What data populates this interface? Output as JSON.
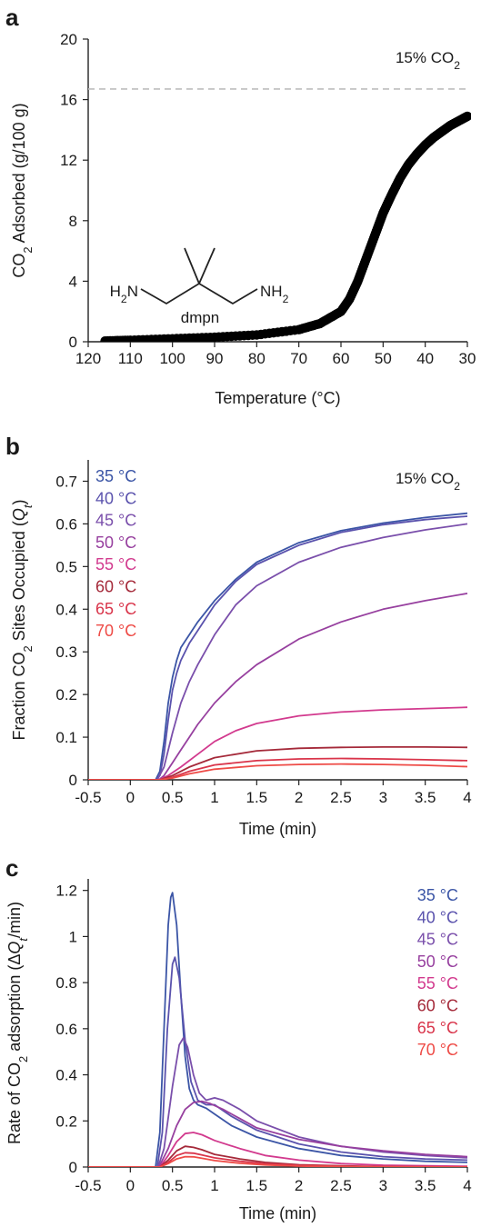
{
  "series_names": [
    "35 °C",
    "40 °C",
    "45 °C",
    "50 °C",
    "55 °C",
    "60 °C",
    "65 °C",
    "70 °C"
  ],
  "series_colors": [
    "#3b55a6",
    "#5a52ad",
    "#7a4fab",
    "#97409f",
    "#d23a8e",
    "#a52a3a",
    "#d9344a",
    "#ee4b46"
  ],
  "chart_data": [
    {
      "panel": "a",
      "type": "scatter",
      "title": "",
      "xlabel": "Temperature (°C)",
      "ylabel": "CO2 Adsorbed (g/100 g)",
      "xlim": [
        120,
        30
      ],
      "ylim": [
        0,
        20
      ],
      "x_ticks": [
        "120",
        "110",
        "100",
        "90",
        "80",
        "70",
        "60",
        "50",
        "40",
        "30"
      ],
      "y_ticks": [
        "0",
        "4",
        "8",
        "12",
        "16",
        "20"
      ],
      "annotation": "15% CO2",
      "molecule_label": "dmpn",
      "molecule_groups": [
        "H2N",
        "NH2"
      ],
      "reference_line": {
        "y": 16.7,
        "style": "dashed",
        "color": "#bdbdbd"
      },
      "series": [
        {
          "color": "#000000",
          "x": [
            116,
            110,
            100,
            90,
            80,
            70,
            65,
            60,
            58,
            56,
            54,
            52,
            50,
            48,
            46,
            44,
            42,
            40,
            38,
            36,
            34,
            32,
            30
          ],
          "y": [
            0.05,
            0.1,
            0.2,
            0.3,
            0.45,
            0.8,
            1.2,
            2.0,
            2.8,
            4.0,
            5.5,
            7.0,
            8.5,
            9.7,
            10.8,
            11.7,
            12.4,
            13.0,
            13.5,
            13.9,
            14.3,
            14.6,
            14.9
          ]
        }
      ]
    },
    {
      "panel": "b",
      "type": "line",
      "title": "",
      "xlabel": "Time (min)",
      "ylabel": "Fraction CO2 Sites Occupied (Qt)",
      "xlim": [
        -0.5,
        4
      ],
      "ylim": [
        0,
        0.75
      ],
      "x_ticks": [
        "-0.5",
        "0",
        "0.5",
        "1",
        "1.5",
        "2",
        "2.5",
        "3",
        "3.5",
        "4"
      ],
      "y_ticks": [
        "0",
        "0.1",
        "0.2",
        "0.3",
        "0.4",
        "0.5",
        "0.6",
        "0.7"
      ],
      "annotation": "15% CO2",
      "legend": "top-left",
      "series": [
        {
          "name": "35 °C",
          "x": [
            -0.5,
            0.3,
            0.35,
            0.4,
            0.45,
            0.5,
            0.55,
            0.6,
            0.7,
            0.8,
            1.0,
            1.25,
            1.5,
            2.0,
            2.5,
            3.0,
            3.5,
            4.0
          ],
          "y": [
            0,
            0,
            0.02,
            0.09,
            0.18,
            0.24,
            0.28,
            0.31,
            0.34,
            0.37,
            0.42,
            0.47,
            0.51,
            0.556,
            0.584,
            0.602,
            0.615,
            0.625
          ]
        },
        {
          "name": "40 °C",
          "x": [
            -0.5,
            0.3,
            0.35,
            0.4,
            0.45,
            0.5,
            0.55,
            0.6,
            0.7,
            0.8,
            1.0,
            1.25,
            1.5,
            2.0,
            2.5,
            3.0,
            3.5,
            4.0
          ],
          "y": [
            0,
            0,
            0.01,
            0.06,
            0.14,
            0.21,
            0.25,
            0.28,
            0.32,
            0.35,
            0.41,
            0.465,
            0.505,
            0.55,
            0.58,
            0.598,
            0.61,
            0.618
          ]
        },
        {
          "name": "45 °C",
          "x": [
            -0.5,
            0.32,
            0.4,
            0.5,
            0.6,
            0.7,
            0.8,
            1.0,
            1.25,
            1.5,
            2.0,
            2.5,
            3.0,
            3.5,
            4.0
          ],
          "y": [
            0,
            0,
            0.03,
            0.11,
            0.18,
            0.23,
            0.27,
            0.34,
            0.41,
            0.455,
            0.51,
            0.545,
            0.568,
            0.586,
            0.6
          ]
        },
        {
          "name": "50 °C",
          "x": [
            -0.5,
            0.34,
            0.4,
            0.5,
            0.6,
            0.7,
            0.8,
            1.0,
            1.25,
            1.5,
            2.0,
            2.5,
            3.0,
            3.5,
            4.0
          ],
          "y": [
            0,
            0,
            0.01,
            0.04,
            0.07,
            0.1,
            0.13,
            0.18,
            0.23,
            0.27,
            0.33,
            0.37,
            0.4,
            0.42,
            0.437
          ]
        },
        {
          "name": "55 °C",
          "x": [
            -0.5,
            0.34,
            0.45,
            0.6,
            0.8,
            1.0,
            1.25,
            1.5,
            2.0,
            2.5,
            3.0,
            3.5,
            4.0
          ],
          "y": [
            0,
            0,
            0.01,
            0.03,
            0.06,
            0.09,
            0.115,
            0.132,
            0.15,
            0.159,
            0.164,
            0.167,
            0.17
          ]
        },
        {
          "name": "60 °C",
          "x": [
            -0.5,
            0.35,
            0.5,
            0.7,
            1.0,
            1.5,
            2.0,
            2.5,
            3.0,
            3.5,
            4.0
          ],
          "y": [
            0,
            0,
            0.01,
            0.03,
            0.052,
            0.068,
            0.074,
            0.076,
            0.077,
            0.077,
            0.076
          ]
        },
        {
          "name": "65 °C",
          "x": [
            -0.5,
            0.35,
            0.5,
            0.7,
            1.0,
            1.5,
            2.0,
            2.5,
            3.0,
            3.5,
            4.0
          ],
          "y": [
            0,
            0,
            0.006,
            0.02,
            0.035,
            0.045,
            0.049,
            0.05,
            0.049,
            0.047,
            0.045
          ]
        },
        {
          "name": "70 °C",
          "x": [
            -0.5,
            0.35,
            0.5,
            0.7,
            1.0,
            1.5,
            2.0,
            2.5,
            3.0,
            3.5,
            4.0
          ],
          "y": [
            0,
            0,
            0.004,
            0.014,
            0.025,
            0.033,
            0.036,
            0.037,
            0.036,
            0.034,
            0.031
          ]
        }
      ]
    },
    {
      "panel": "c",
      "type": "line",
      "title": "",
      "xlabel": "Time (min)",
      "ylabel": "Rate of CO2 adsorption (ΔQt/min)",
      "xlim": [
        -0.5,
        4
      ],
      "ylim": [
        0,
        1.25
      ],
      "x_ticks": [
        "-0.5",
        "0",
        "0.5",
        "1",
        "1.5",
        "2",
        "2.5",
        "3",
        "3.5",
        "4"
      ],
      "y_ticks": [
        "0",
        "0.2",
        "0.4",
        "0.6",
        "0.8",
        "1",
        "1.2"
      ],
      "legend": "top-right",
      "series": [
        {
          "name": "35 °C",
          "x": [
            -0.5,
            0.3,
            0.35,
            0.4,
            0.45,
            0.48,
            0.5,
            0.55,
            0.6,
            0.65,
            0.7,
            0.75,
            0.8,
            0.9,
            1.0,
            1.2,
            1.5,
            2.0,
            2.5,
            3.0,
            3.5,
            4.0
          ],
          "y": [
            0,
            0,
            0.15,
            0.6,
            1.05,
            1.17,
            1.19,
            1.05,
            0.75,
            0.48,
            0.34,
            0.29,
            0.27,
            0.255,
            0.23,
            0.18,
            0.13,
            0.08,
            0.05,
            0.035,
            0.025,
            0.02
          ]
        },
        {
          "name": "40 °C",
          "x": [
            -0.5,
            0.32,
            0.38,
            0.44,
            0.5,
            0.53,
            0.58,
            0.65,
            0.72,
            0.8,
            0.9,
            1.0,
            1.2,
            1.5,
            2.0,
            2.5,
            3.0,
            3.5,
            4.0
          ],
          "y": [
            0,
            0,
            0.15,
            0.6,
            0.88,
            0.91,
            0.82,
            0.55,
            0.37,
            0.29,
            0.27,
            0.27,
            0.22,
            0.16,
            0.1,
            0.065,
            0.045,
            0.035,
            0.03
          ]
        },
        {
          "name": "45 °C",
          "x": [
            -0.5,
            0.33,
            0.4,
            0.5,
            0.58,
            0.63,
            0.68,
            0.75,
            0.82,
            0.9,
            1.0,
            1.1,
            1.3,
            1.5,
            2.0,
            2.5,
            3.0,
            3.5,
            4.0
          ],
          "y": [
            0,
            0,
            0.08,
            0.35,
            0.53,
            0.56,
            0.52,
            0.4,
            0.32,
            0.29,
            0.3,
            0.29,
            0.25,
            0.2,
            0.13,
            0.09,
            0.065,
            0.05,
            0.04
          ]
        },
        {
          "name": "50 °C",
          "x": [
            -0.5,
            0.34,
            0.45,
            0.55,
            0.65,
            0.75,
            0.85,
            0.95,
            1.1,
            1.3,
            1.5,
            2.0,
            2.5,
            3.0,
            3.5,
            4.0
          ],
          "y": [
            0,
            0,
            0.08,
            0.18,
            0.25,
            0.28,
            0.285,
            0.275,
            0.25,
            0.21,
            0.17,
            0.12,
            0.09,
            0.07,
            0.055,
            0.045
          ]
        },
        {
          "name": "55 °C",
          "x": [
            -0.5,
            0.35,
            0.45,
            0.55,
            0.65,
            0.75,
            0.85,
            1.0,
            1.3,
            1.6,
            2.0,
            2.5,
            3.0,
            4.0
          ],
          "y": [
            0,
            0,
            0.05,
            0.11,
            0.145,
            0.15,
            0.14,
            0.115,
            0.08,
            0.05,
            0.03,
            0.015,
            0.008,
            0.003
          ]
        },
        {
          "name": "60 °C",
          "x": [
            -0.5,
            0.35,
            0.45,
            0.55,
            0.65,
            0.75,
            0.85,
            1.0,
            1.3,
            1.6,
            2.0,
            2.5,
            3.0,
            4.0
          ],
          "y": [
            0,
            0,
            0.03,
            0.07,
            0.09,
            0.085,
            0.075,
            0.055,
            0.035,
            0.02,
            0.01,
            0.005,
            0.002,
            0
          ]
        },
        {
          "name": "65 °C",
          "x": [
            -0.5,
            0.35,
            0.45,
            0.55,
            0.65,
            0.75,
            0.85,
            1.0,
            1.3,
            1.6,
            2.0,
            2.5,
            3.0,
            4.0
          ],
          "y": [
            0,
            0,
            0.02,
            0.05,
            0.062,
            0.06,
            0.052,
            0.04,
            0.025,
            0.014,
            0.007,
            0.003,
            0.001,
            0
          ]
        },
        {
          "name": "70 °C",
          "x": [
            -0.5,
            0.35,
            0.45,
            0.55,
            0.65,
            0.75,
            0.85,
            1.0,
            1.3,
            1.6,
            2.0,
            2.5,
            3.0,
            4.0
          ],
          "y": [
            0,
            0,
            0.015,
            0.035,
            0.045,
            0.044,
            0.038,
            0.028,
            0.016,
            0.009,
            0.004,
            0.002,
            0.001,
            0
          ]
        }
      ]
    }
  ]
}
